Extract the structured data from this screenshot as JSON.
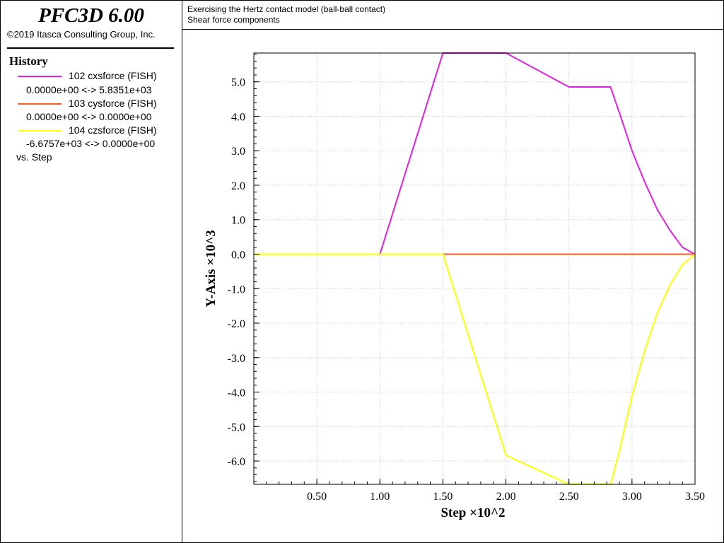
{
  "product": {
    "title": "PFC3D 6.00",
    "copyright": "©2019 Itasca Consulting Group, Inc."
  },
  "header": {
    "line1": "Exercising the Hertz contact model (ball-ball contact)",
    "line2": "Shear force components"
  },
  "history": {
    "title": "History",
    "entries": [
      {
        "label": "102 cxsforce (FISH)",
        "range": "0.0000e+00  <->  5.8351e+03",
        "color": "#e020e0"
      },
      {
        "label": "103 cysforce (FISH)",
        "range": "0.0000e+00  <->  0.0000e+00",
        "color": "#ff5a1e"
      },
      {
        "label": "104 czsforce (FISH)",
        "range": "-6.6757e+03 <->  0.0000e+00",
        "color": "#ffff00"
      }
    ],
    "vs": "vs. Step"
  },
  "chart_data": {
    "type": "line",
    "xlabel": "Step ×10^2",
    "ylabel": "Y-Axis ×10^3",
    "xlim": [
      0,
      3.5
    ],
    "ylim": [
      -6.6757,
      5.8351
    ],
    "x_ticks": [
      "0.50",
      "1.00",
      "1.50",
      "2.00",
      "2.50",
      "3.00",
      "3.50"
    ],
    "y_ticks": [
      "5.0",
      "4.0",
      "3.0",
      "2.0",
      "1.0",
      "0.0",
      "-1.0",
      "-2.0",
      "-3.0",
      "-4.0",
      "-5.0",
      "-6.0"
    ],
    "grid": true,
    "series": [
      {
        "name": "102 cxsforce (FISH)",
        "color": "#e020e0",
        "x": [
          0,
          1.0,
          1.5,
          2.0,
          2.5,
          2.83,
          2.9,
          3.0,
          3.1,
          3.2,
          3.3,
          3.4,
          3.5
        ],
        "y": [
          0,
          0,
          5.8351,
          5.8351,
          4.85,
          4.85,
          4.1,
          3.0,
          2.1,
          1.3,
          0.7,
          0.2,
          0
        ]
      },
      {
        "name": "103 cysforce (FISH)",
        "color": "#ff5a1e",
        "x": [
          0,
          3.5
        ],
        "y": [
          0,
          0
        ]
      },
      {
        "name": "104 czsforce (FISH)",
        "color": "#ffff00",
        "x": [
          0,
          1.5,
          2.0,
          2.5,
          2.83,
          2.9,
          3.0,
          3.1,
          3.2,
          3.3,
          3.4,
          3.5
        ],
        "y": [
          0,
          0,
          -5.83,
          -6.6757,
          -6.6757,
          -5.7,
          -4.1,
          -2.8,
          -1.7,
          -0.9,
          -0.3,
          0
        ]
      }
    ]
  }
}
